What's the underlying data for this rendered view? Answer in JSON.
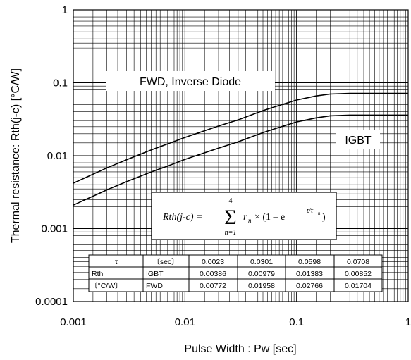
{
  "chart_data": {
    "type": "line",
    "title": "",
    "xlabel": "Pulse Width : Pw [sec]",
    "ylabel": "Thermal resistance: Rth(j-c) [°C/W]",
    "x_scale": "log",
    "y_scale": "log",
    "xlim": [
      0.001,
      1
    ],
    "ylim": [
      0.0001,
      1
    ],
    "x_ticks": [
      {
        "value": 0.001,
        "label": "0.001"
      },
      {
        "value": 0.01,
        "label": "0.01"
      },
      {
        "value": 0.1,
        "label": "0.1"
      },
      {
        "value": 1,
        "label": "1"
      }
    ],
    "y_ticks": [
      {
        "value": 0.0001,
        "label": "0.0001"
      },
      {
        "value": 0.001,
        "label": "0.001"
      },
      {
        "value": 0.01,
        "label": "0.01"
      },
      {
        "value": 0.1,
        "label": "0.1"
      },
      {
        "value": 1,
        "label": "1"
      }
    ],
    "grid": true,
    "series": [
      {
        "name": "FWD, Inverse Diode",
        "x": [
          0.001,
          0.002,
          0.003,
          0.005,
          0.007,
          0.01,
          0.02,
          0.03,
          0.05,
          0.07,
          0.1,
          0.15,
          0.2,
          0.3,
          0.5,
          0.7,
          1
        ],
        "y": [
          0.0042,
          0.0068,
          0.0088,
          0.012,
          0.0145,
          0.0178,
          0.0255,
          0.031,
          0.0415,
          0.049,
          0.058,
          0.066,
          0.07,
          0.0715,
          0.0715,
          0.0715,
          0.0715
        ]
      },
      {
        "name": "IGBT",
        "x": [
          0.001,
          0.002,
          0.003,
          0.005,
          0.007,
          0.01,
          0.02,
          0.03,
          0.05,
          0.07,
          0.1,
          0.15,
          0.2,
          0.3,
          0.5,
          0.7,
          1
        ],
        "y": [
          0.0021,
          0.0034,
          0.0044,
          0.006,
          0.0072,
          0.0089,
          0.0127,
          0.0155,
          0.0207,
          0.0245,
          0.029,
          0.033,
          0.0352,
          0.036,
          0.036,
          0.036,
          0.036
        ]
      }
    ],
    "annotations": [
      {
        "text": "FWD, Inverse Diode",
        "x": 0.014,
        "y": 0.098
      },
      {
        "text": "IGBT",
        "x": 0.31,
        "y": 0.0138
      }
    ],
    "formula": {
      "lhs": "Rth(j-c) =",
      "sum_top": "4",
      "sum_bottom": "n=1",
      "term": "r",
      "term_sub": "n",
      "rest": "× (1 – e",
      "exp": "–t/τ",
      "exp_sub": "n",
      "close": ")"
    },
    "table": {
      "rows": [
        [
          "τ",
          "〔sec〕",
          "0.0023",
          "0.0301",
          "0.0598",
          "0.0708"
        ],
        [
          "Rth",
          "IGBT",
          "0.00386",
          "0.00979",
          "0.01383",
          "0.00852"
        ],
        [
          "〔°C/W〕",
          "FWD",
          "0.00772",
          "0.01958",
          "0.02766",
          "0.01704"
        ]
      ]
    }
  }
}
